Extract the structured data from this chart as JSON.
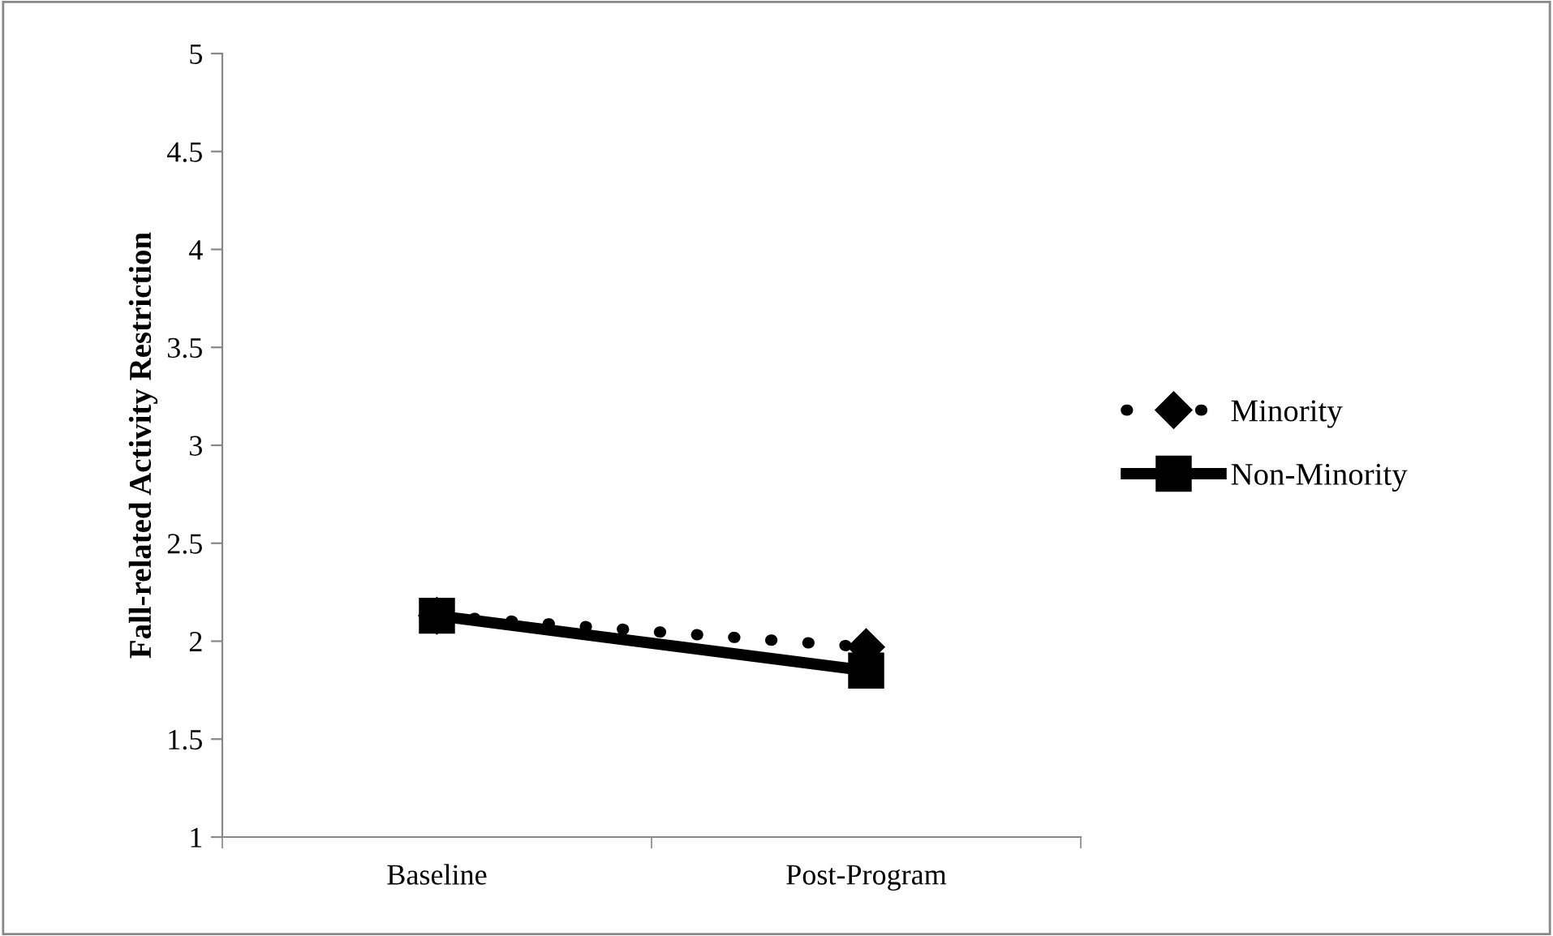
{
  "chart_data": {
    "type": "line",
    "ylabel": "Fall-related Activity Restriction",
    "categories": [
      "Baseline",
      "Post-Program"
    ],
    "series": [
      {
        "name": "Minority",
        "color": "#000000",
        "values": [
          2.13,
          1.97
        ],
        "marker": "diamond",
        "line_style": "dotted"
      },
      {
        "name": "Non-Minority",
        "color": "#000000",
        "values": [
          2.13,
          1.85
        ],
        "marker": "square",
        "line_style": "solid"
      }
    ],
    "ylim": [
      1,
      5
    ],
    "yticks": [
      1,
      1.5,
      2,
      2.5,
      3,
      3.5,
      4,
      4.5,
      5
    ],
    "grid": false,
    "legend": "right"
  }
}
